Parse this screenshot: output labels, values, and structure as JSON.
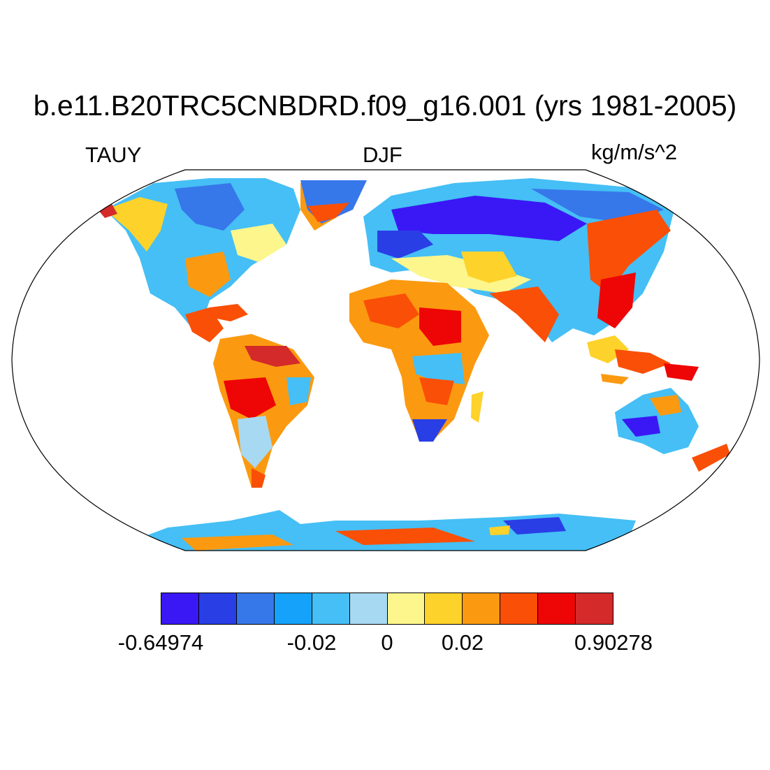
{
  "title": "b.e11.B20TRC5CNBDRD.f09_g16.001 (yrs 1981-2005)",
  "variable": "TAUY",
  "season": "DJF",
  "units": "kg/m/s^2",
  "map": {
    "projection": "robinson",
    "field": "surface meridional wind stress over land",
    "ocean_fill": "#ffffff",
    "coastline_color": "#000000"
  },
  "colorbar": {
    "colors": [
      "#3a18f5",
      "#2a3ee6",
      "#3677ea",
      "#14a2fb",
      "#45bff5",
      "#a8d9f2",
      "#fdf68c",
      "#fdd22a",
      "#fb9a10",
      "#fa4f06",
      "#ee0505",
      "#d42a2a"
    ],
    "labels": [
      {
        "text": "-0.64974",
        "boundary": 0
      },
      {
        "text": "-0.02",
        "boundary": 4
      },
      {
        "text": "0",
        "boundary": 6
      },
      {
        "text": "0.02",
        "boundary": 8
      },
      {
        "text": "0.90278",
        "boundary": 12
      }
    ]
  }
}
